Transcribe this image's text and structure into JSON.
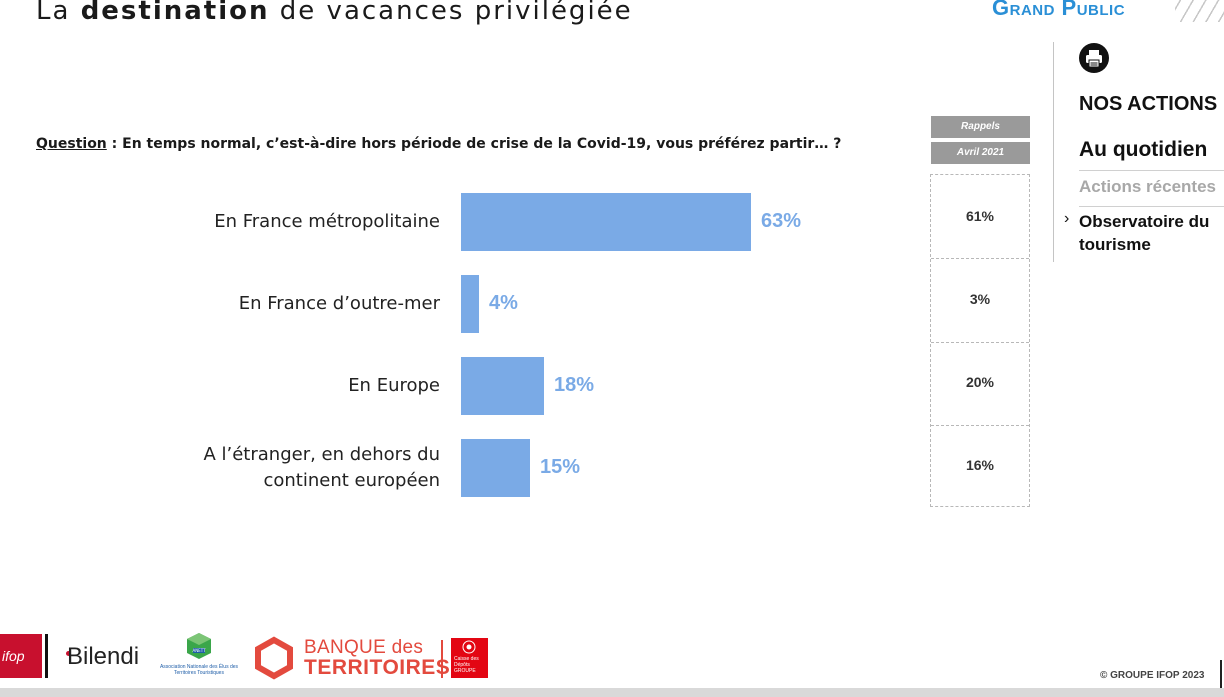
{
  "header": {
    "title_pre": "La ",
    "title_bold": "destination",
    "title_post": " de vacances privilégiée",
    "section_label": "Grand Public"
  },
  "question": {
    "label": "Question",
    "text": " : En temps normal, c’est-à-dire hors période de crise de la Covid-19, vous préférez partir… ?"
  },
  "chart_data": {
    "type": "bar",
    "orientation": "horizontal",
    "categories": [
      "En France métropolitaine",
      "En France d’outre-mer",
      "En Europe",
      "A l’étranger, en dehors du continent européen"
    ],
    "category_lines": [
      [
        "En France métropolitaine"
      ],
      [
        "En France d’outre-mer"
      ],
      [
        "En Europe"
      ],
      [
        "A l’étranger, en dehors du",
        "continent européen"
      ]
    ],
    "values": [
      63,
      4,
      18,
      15
    ],
    "value_labels": [
      "63%",
      "4%",
      "18%",
      "15%"
    ],
    "unit": "%",
    "bar_color": "#7aaae6"
  },
  "rappels": {
    "header": "Rappels",
    "date": "Avril 2021",
    "values": [
      "61%",
      "3%",
      "20%",
      "16%"
    ]
  },
  "nav": {
    "print_icon": "printer-icon",
    "actions": "NOS ACTIONS",
    "daily": "Au quotidien",
    "recent": "Actions récentes",
    "chevron": "›",
    "observatory": "Observatoire du tourisme"
  },
  "footer": {
    "ifop": "ifop",
    "bilendi": "Bilendi",
    "anett": "Association Nationale des Élus des Territoires Touristiques",
    "anett_short": "ANETT",
    "banque_line1": "BANQUE des",
    "banque_line2": "TERRITOIRES",
    "caisse": "Caisse des Dépôts GROUPE",
    "copyright": "© GROUPE IFOP 2023"
  },
  "colors": {
    "accent_blue": "#2a8fd6",
    "bar_blue": "#7aaae6",
    "ifop_red": "#c8102e",
    "bdt_red": "#e34a3e"
  }
}
